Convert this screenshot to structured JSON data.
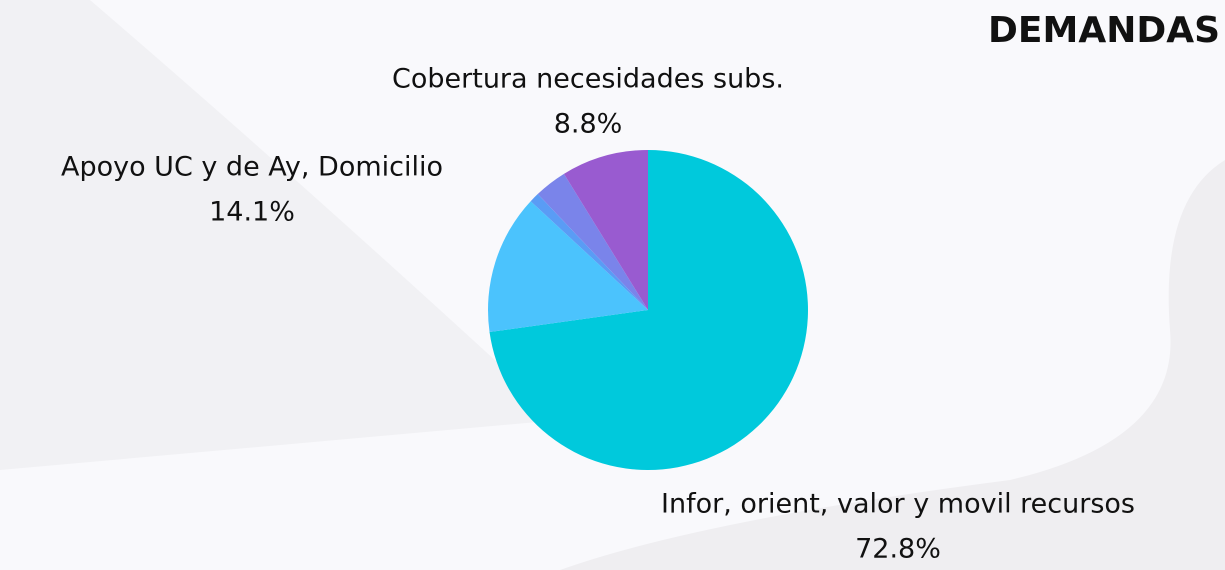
{
  "chart_data": {
    "type": "pie",
    "title": "DEMANDAS",
    "categories": [
      "Infor, orient, valor y movil recursos",
      "Apoyo UC y de Ay, Domicilio",
      null,
      null,
      "Cobertura necesidades subs."
    ],
    "values": [
      72.8,
      14.1,
      1.0,
      3.3,
      8.8
    ],
    "value_labels": [
      "72.8%",
      "14.1%",
      null,
      null,
      "8.8%"
    ],
    "colors": [
      "#00c9dc",
      "#4bc3fd",
      "#5a9cf5",
      "#7a84ea",
      "#995bd0"
    ]
  }
}
